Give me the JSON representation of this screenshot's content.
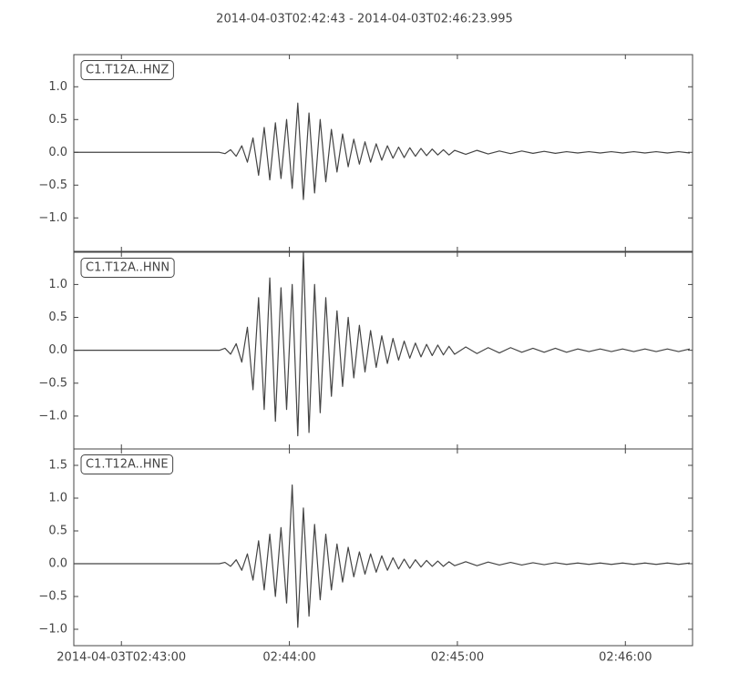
{
  "title": "2014-04-03T02:42:43  -  2014-04-03T02:46:23.995",
  "chart_data": [
    {
      "type": "line",
      "label": "C1.T12A..HNZ",
      "color": "#444444",
      "xlim": [
        "2014-04-03T02:42:43",
        "2014-04-03T02:46:23.995"
      ],
      "xticks": [
        "2014-04-03T02:43:00",
        {
          "value": "2014-04-03T02:44:00",
          "label": "02:44:00"
        },
        {
          "value": "2014-04-03T02:45:00",
          "label": "02:45:00"
        },
        {
          "value": "2014-04-03T02:46:00",
          "label": "02:46:00"
        }
      ],
      "ylim": [
        -1.51,
        1.49
      ],
      "yticks": [
        {
          "value": -1,
          "label": "−1.0"
        },
        {
          "value": -0.5,
          "label": "−0.5"
        },
        {
          "value": 0,
          "label": "0.0"
        },
        {
          "value": 0.5,
          "label": "0.5"
        },
        {
          "value": 1,
          "label": "1.0"
        }
      ],
      "x": [
        "2014-04-03T02:42:43",
        "2014-04-03T02:43:03",
        "2014-04-03T02:43:23",
        "2014-04-03T02:43:35",
        "2014-04-03T02:43:37",
        "2014-04-03T02:43:39",
        "2014-04-03T02:43:41",
        "2014-04-03T02:43:43",
        "2014-04-03T02:43:45",
        "2014-04-03T02:43:47",
        "2014-04-03T02:43:49",
        "2014-04-03T02:43:51",
        "2014-04-03T02:43:53",
        "2014-04-03T02:43:55",
        "2014-04-03T02:43:57",
        "2014-04-03T02:43:59",
        "2014-04-03T02:44:01",
        "2014-04-03T02:44:03",
        "2014-04-03T02:44:05",
        "2014-04-03T02:44:07",
        "2014-04-03T02:44:09",
        "2014-04-03T02:44:11",
        "2014-04-03T02:44:13",
        "2014-04-03T02:44:15",
        "2014-04-03T02:44:17",
        "2014-04-03T02:44:19",
        "2014-04-03T02:44:21",
        "2014-04-03T02:44:23",
        "2014-04-03T02:44:25",
        "2014-04-03T02:44:27",
        "2014-04-03T02:44:29",
        "2014-04-03T02:44:31",
        "2014-04-03T02:44:33",
        "2014-04-03T02:44:35",
        "2014-04-03T02:44:37",
        "2014-04-03T02:44:39",
        "2014-04-03T02:44:41",
        "2014-04-03T02:44:43",
        "2014-04-03T02:44:45",
        "2014-04-03T02:44:47",
        "2014-04-03T02:44:49",
        "2014-04-03T02:44:51",
        "2014-04-03T02:44:53",
        "2014-04-03T02:44:55",
        "2014-04-03T02:44:57",
        "2014-04-03T02:44:59",
        "2014-04-03T02:45:03",
        "2014-04-03T02:45:07",
        "2014-04-03T02:45:11",
        "2014-04-03T02:45:15",
        "2014-04-03T02:45:19",
        "2014-04-03T02:45:23",
        "2014-04-03T02:45:27",
        "2014-04-03T02:45:31",
        "2014-04-03T02:45:35",
        "2014-04-03T02:45:39",
        "2014-04-03T02:45:43",
        "2014-04-03T02:45:47",
        "2014-04-03T02:45:51",
        "2014-04-03T02:45:55",
        "2014-04-03T02:45:59",
        "2014-04-03T02:46:03",
        "2014-04-03T02:46:07",
        "2014-04-03T02:46:11",
        "2014-04-03T02:46:15",
        "2014-04-03T02:46:19",
        "2014-04-03T02:46:23"
      ],
      "values": [
        0,
        0,
        0,
        0,
        -0.02,
        0.04,
        -0.06,
        0.1,
        -0.15,
        0.22,
        -0.35,
        0.38,
        -0.42,
        0.45,
        -0.4,
        0.5,
        -0.55,
        0.75,
        -0.72,
        0.6,
        -0.62,
        0.5,
        -0.45,
        0.35,
        -0.3,
        0.28,
        -0.22,
        0.2,
        -0.18,
        0.16,
        -0.15,
        0.13,
        -0.12,
        0.1,
        -0.09,
        0.08,
        -0.08,
        0.07,
        -0.06,
        0.06,
        -0.05,
        0.05,
        -0.04,
        0.04,
        -0.04,
        0.03,
        -0.03,
        0.03,
        -0.025,
        0.02,
        -0.02,
        0.02,
        -0.015,
        0.015,
        -0.015,
        0.01,
        -0.01,
        0.01,
        -0.01,
        0.01,
        -0.01,
        0.01,
        -0.01,
        0.01,
        -0.01,
        0.01,
        -0.01
      ]
    },
    {
      "type": "line",
      "label": "C1.T12A..HNN",
      "color": "#444444",
      "xlim": [
        "2014-04-03T02:42:43",
        "2014-04-03T02:46:23.995"
      ],
      "xticks": [
        "2014-04-03T02:43:00",
        {
          "value": "2014-04-03T02:44:00",
          "label": "02:44:00"
        },
        {
          "value": "2014-04-03T02:45:00",
          "label": "02:45:00"
        },
        {
          "value": "2014-04-03T02:46:00",
          "label": "02:46:00"
        }
      ],
      "ylim": [
        -1.5,
        1.49
      ],
      "yticks": [
        {
          "value": -1,
          "label": "−1.0"
        },
        {
          "value": -0.5,
          "label": "−0.5"
        },
        {
          "value": 0,
          "label": "0.0"
        },
        {
          "value": 0.5,
          "label": "0.5"
        },
        {
          "value": 1,
          "label": "1.0"
        }
      ],
      "x": [
        "2014-04-03T02:42:43",
        "2014-04-03T02:43:03",
        "2014-04-03T02:43:23",
        "2014-04-03T02:43:35",
        "2014-04-03T02:43:37",
        "2014-04-03T02:43:39",
        "2014-04-03T02:43:41",
        "2014-04-03T02:43:43",
        "2014-04-03T02:43:45",
        "2014-04-03T02:43:47",
        "2014-04-03T02:43:49",
        "2014-04-03T02:43:51",
        "2014-04-03T02:43:53",
        "2014-04-03T02:43:55",
        "2014-04-03T02:43:57",
        "2014-04-03T02:43:59",
        "2014-04-03T02:44:01",
        "2014-04-03T02:44:03",
        "2014-04-03T02:44:05",
        "2014-04-03T02:44:07",
        "2014-04-03T02:44:09",
        "2014-04-03T02:44:11",
        "2014-04-03T02:44:13",
        "2014-04-03T02:44:15",
        "2014-04-03T02:44:17",
        "2014-04-03T02:44:19",
        "2014-04-03T02:44:21",
        "2014-04-03T02:44:23",
        "2014-04-03T02:44:25",
        "2014-04-03T02:44:27",
        "2014-04-03T02:44:29",
        "2014-04-03T02:44:31",
        "2014-04-03T02:44:33",
        "2014-04-03T02:44:35",
        "2014-04-03T02:44:37",
        "2014-04-03T02:44:39",
        "2014-04-03T02:44:41",
        "2014-04-03T02:44:43",
        "2014-04-03T02:44:45",
        "2014-04-03T02:44:47",
        "2014-04-03T02:44:49",
        "2014-04-03T02:44:51",
        "2014-04-03T02:44:53",
        "2014-04-03T02:44:55",
        "2014-04-03T02:44:57",
        "2014-04-03T02:44:59",
        "2014-04-03T02:45:03",
        "2014-04-03T02:45:07",
        "2014-04-03T02:45:11",
        "2014-04-03T02:45:15",
        "2014-04-03T02:45:19",
        "2014-04-03T02:45:23",
        "2014-04-03T02:45:27",
        "2014-04-03T02:45:31",
        "2014-04-03T02:45:35",
        "2014-04-03T02:45:39",
        "2014-04-03T02:45:43",
        "2014-04-03T02:45:47",
        "2014-04-03T02:45:51",
        "2014-04-03T02:45:55",
        "2014-04-03T02:45:59",
        "2014-04-03T02:46:03",
        "2014-04-03T02:46:07",
        "2014-04-03T02:46:11",
        "2014-04-03T02:46:15",
        "2014-04-03T02:46:19",
        "2014-04-03T02:46:23"
      ],
      "values": [
        0,
        0,
        0,
        0,
        0.03,
        -0.06,
        0.1,
        -0.18,
        0.35,
        -0.6,
        0.8,
        -0.9,
        1.1,
        -1.08,
        0.95,
        -0.9,
        1.0,
        -1.3,
        1.49,
        -1.25,
        1.0,
        -0.95,
        0.8,
        -0.7,
        0.6,
        -0.55,
        0.5,
        -0.42,
        0.38,
        -0.33,
        0.3,
        -0.26,
        0.22,
        -0.2,
        0.18,
        -0.15,
        0.14,
        -0.12,
        0.11,
        -0.1,
        0.09,
        -0.08,
        0.08,
        -0.07,
        0.06,
        -0.06,
        0.05,
        -0.05,
        0.04,
        -0.04,
        0.04,
        -0.03,
        0.03,
        -0.03,
        0.03,
        -0.03,
        0.02,
        -0.02,
        0.02,
        -0.02,
        0.02,
        -0.02,
        0.02,
        -0.02,
        0.02,
        -0.02,
        0.02
      ]
    },
    {
      "type": "line",
      "label": "C1.T12A..HNE",
      "color": "#444444",
      "xlim": [
        "2014-04-03T02:42:43",
        "2014-04-03T02:46:23.995"
      ],
      "xticks": [
        "2014-04-03T02:43:00",
        {
          "value": "2014-04-03T02:44:00",
          "label": "02:44:00"
        },
        {
          "value": "2014-04-03T02:45:00",
          "label": "02:45:00"
        },
        {
          "value": "2014-04-03T02:46:00",
          "label": "02:46:00"
        }
      ],
      "ylim": [
        -1.25,
        1.75
      ],
      "yticks": [
        {
          "value": -1,
          "label": "−1.0"
        },
        {
          "value": -0.5,
          "label": "−0.5"
        },
        {
          "value": 0,
          "label": "0.0"
        },
        {
          "value": 0.5,
          "label": "0.5"
        },
        {
          "value": 1,
          "label": "1.0"
        },
        {
          "value": 1.5,
          "label": "1.5"
        }
      ],
      "x": [
        "2014-04-03T02:42:43",
        "2014-04-03T02:43:03",
        "2014-04-03T02:43:23",
        "2014-04-03T02:43:35",
        "2014-04-03T02:43:37",
        "2014-04-03T02:43:39",
        "2014-04-03T02:43:41",
        "2014-04-03T02:43:43",
        "2014-04-03T02:43:45",
        "2014-04-03T02:43:47",
        "2014-04-03T02:43:49",
        "2014-04-03T02:43:51",
        "2014-04-03T02:43:53",
        "2014-04-03T02:43:55",
        "2014-04-03T02:43:57",
        "2014-04-03T02:43:59",
        "2014-04-03T02:44:01",
        "2014-04-03T02:44:03",
        "2014-04-03T02:44:05",
        "2014-04-03T02:44:07",
        "2014-04-03T02:44:09",
        "2014-04-03T02:44:11",
        "2014-04-03T02:44:13",
        "2014-04-03T02:44:15",
        "2014-04-03T02:44:17",
        "2014-04-03T02:44:19",
        "2014-04-03T02:44:21",
        "2014-04-03T02:44:23",
        "2014-04-03T02:44:25",
        "2014-04-03T02:44:27",
        "2014-04-03T02:44:29",
        "2014-04-03T02:44:31",
        "2014-04-03T02:44:33",
        "2014-04-03T02:44:35",
        "2014-04-03T02:44:37",
        "2014-04-03T02:44:39",
        "2014-04-03T02:44:41",
        "2014-04-03T02:44:43",
        "2014-04-03T02:44:45",
        "2014-04-03T02:44:47",
        "2014-04-03T02:44:49",
        "2014-04-03T02:44:51",
        "2014-04-03T02:44:53",
        "2014-04-03T02:44:55",
        "2014-04-03T02:44:57",
        "2014-04-03T02:44:59",
        "2014-04-03T02:45:03",
        "2014-04-03T02:45:07",
        "2014-04-03T02:45:11",
        "2014-04-03T02:45:15",
        "2014-04-03T02:45:19",
        "2014-04-03T02:45:23",
        "2014-04-03T02:45:27",
        "2014-04-03T02:45:31",
        "2014-04-03T02:45:35",
        "2014-04-03T02:45:39",
        "2014-04-03T02:45:43",
        "2014-04-03T02:45:47",
        "2014-04-03T02:45:51",
        "2014-04-03T02:45:55",
        "2014-04-03T02:45:59",
        "2014-04-03T02:46:03",
        "2014-04-03T02:46:07",
        "2014-04-03T02:46:11",
        "2014-04-03T02:46:15",
        "2014-04-03T02:46:19",
        "2014-04-03T02:46:23"
      ],
      "values": [
        0,
        0,
        0,
        0,
        0.02,
        -0.04,
        0.06,
        -0.1,
        0.15,
        -0.25,
        0.35,
        -0.4,
        0.45,
        -0.5,
        0.55,
        -0.6,
        1.2,
        -0.97,
        0.85,
        -0.8,
        0.6,
        -0.55,
        0.45,
        -0.4,
        0.3,
        -0.28,
        0.25,
        -0.2,
        0.18,
        -0.16,
        0.15,
        -0.13,
        0.12,
        -0.1,
        0.09,
        -0.08,
        0.07,
        -0.07,
        0.06,
        -0.05,
        0.05,
        -0.04,
        0.04,
        -0.04,
        0.03,
        -0.03,
        0.03,
        -0.03,
        0.025,
        -0.02,
        0.02,
        -0.02,
        0.015,
        -0.015,
        0.015,
        -0.01,
        0.01,
        -0.01,
        0.01,
        -0.01,
        0.01,
        -0.01,
        0.01,
        -0.01,
        0.01,
        -0.01,
        0.01
      ]
    }
  ]
}
